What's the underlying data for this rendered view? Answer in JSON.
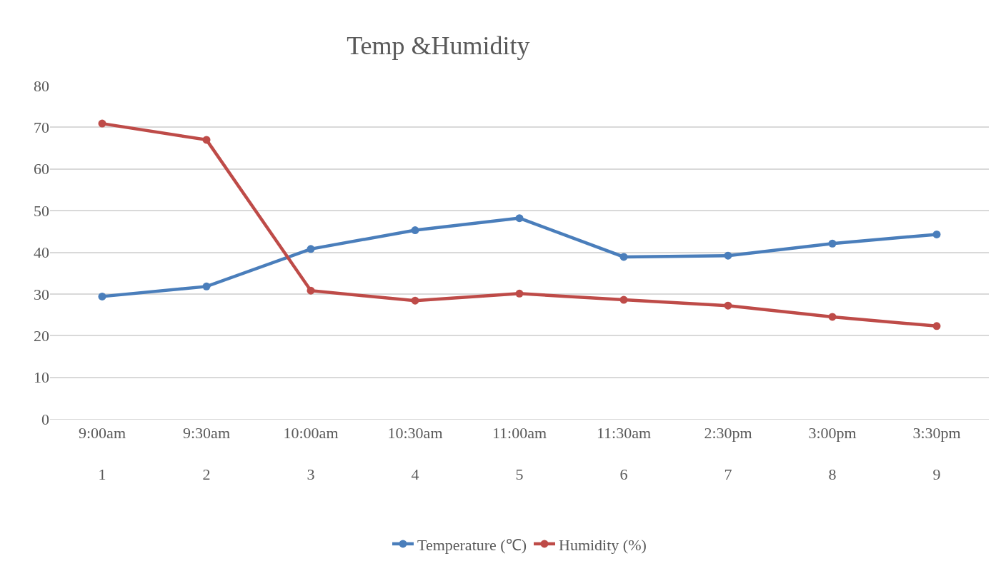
{
  "chart_data": {
    "type": "line",
    "title": "Temp &Humidity",
    "categories": [
      "9:00am\n1",
      "9:30am\n2",
      "10:00am\n3",
      "10:30am\n4",
      "11:00am\n5",
      "11:30am\n6",
      "2:30pm\n7",
      "3:00pm\n8",
      "3:30pm\n9"
    ],
    "series": [
      {
        "name": "Temperature (℃)",
        "color": "#4a7ebb",
        "values": [
          29.4,
          31.8,
          40.8,
          45.3,
          48.2,
          38.9,
          39.2,
          42.1,
          44.3
        ]
      },
      {
        "name": "Humidity (%)",
        "color": "#be4b48",
        "values": [
          70.9,
          67.0,
          30.8,
          28.4,
          30.1,
          28.6,
          27.2,
          24.5,
          22.3
        ]
      }
    ],
    "ylim": [
      0,
      80
    ],
    "yticks": [
      0,
      10,
      20,
      30,
      40,
      50,
      60,
      70,
      80
    ],
    "grid": "y",
    "legend": "bottom",
    "marker": "circle",
    "line_style": "solid"
  }
}
